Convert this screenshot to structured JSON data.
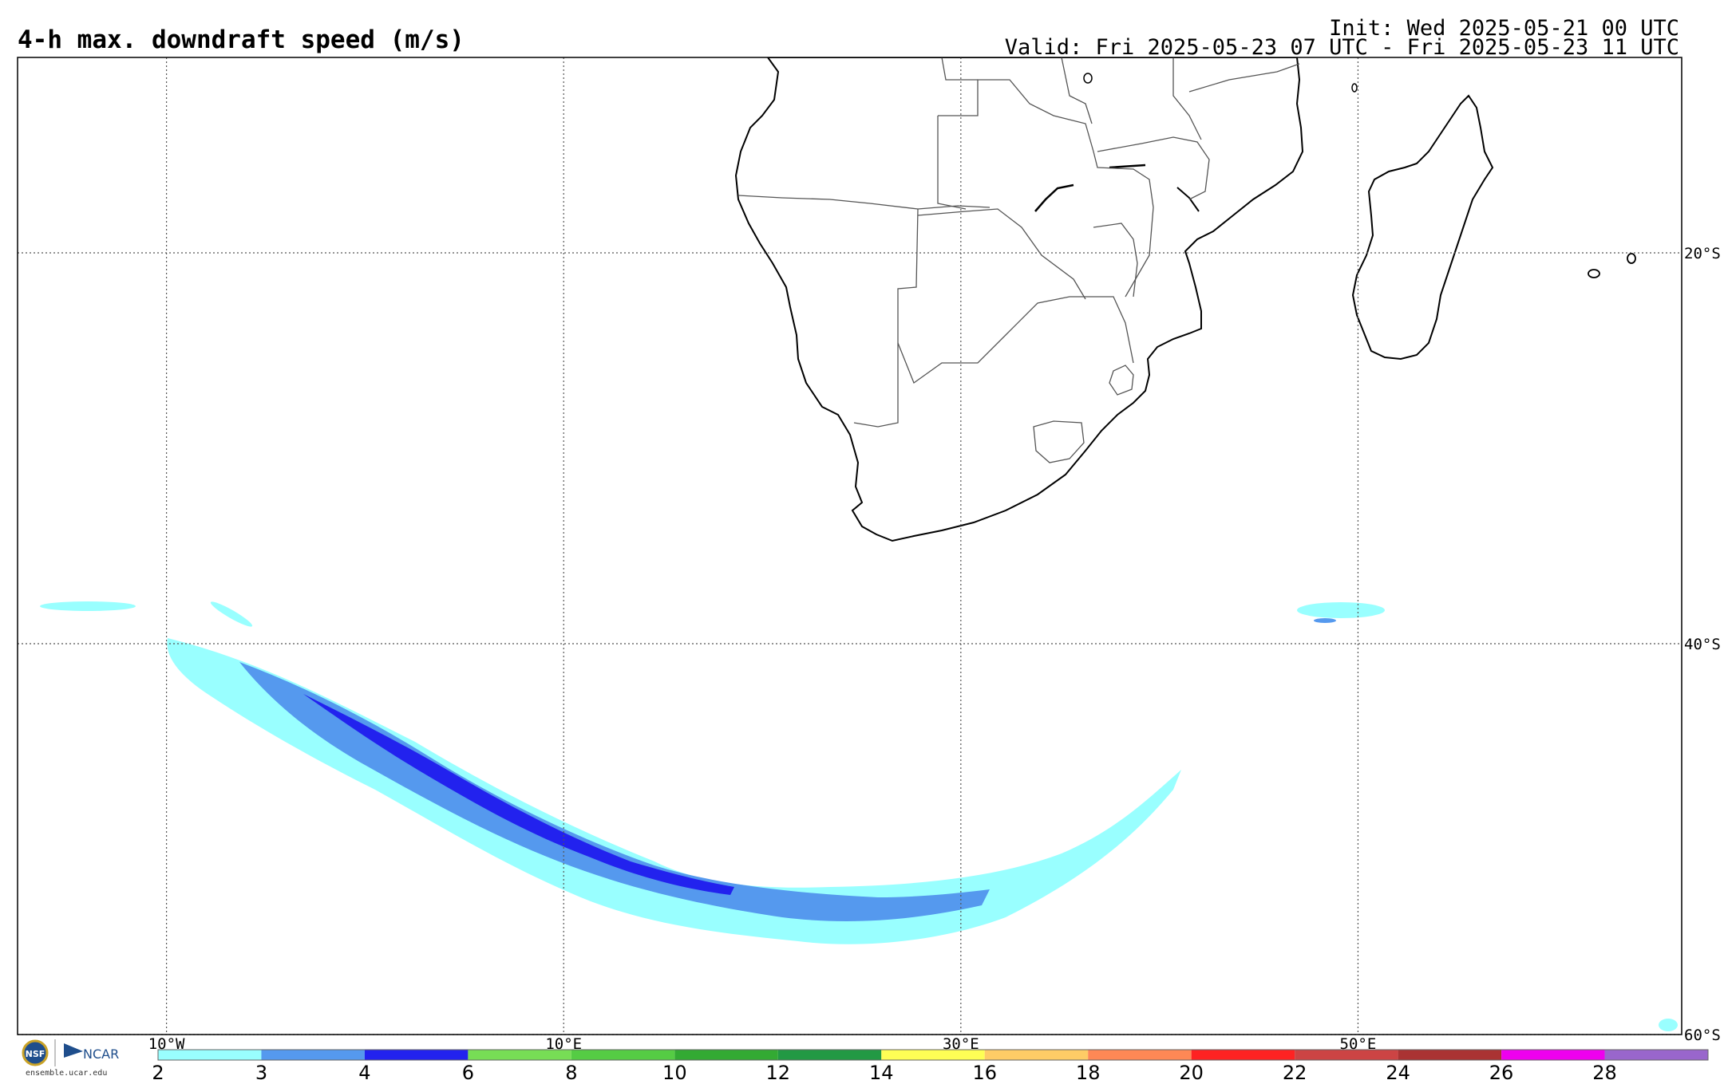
{
  "header": {
    "title": "4-h max. downdraft speed (m/s)",
    "init": "Init: Wed 2025-05-21 00 UTC",
    "valid": "Valid: Fri 2025-05-23 07 UTC - Fri 2025-05-23 11 UTC"
  },
  "map": {
    "lon_range": [
      -17.5,
      66.3
    ],
    "lat_range": [
      -60,
      -10
    ],
    "lon_labels": [
      {
        "lon": -10,
        "label": "10°W"
      },
      {
        "lon": 10,
        "label": "10°E"
      },
      {
        "lon": 30,
        "label": "30°E"
      },
      {
        "lon": 50,
        "label": "50°E"
      }
    ],
    "lat_labels": [
      {
        "lat": -20,
        "label": "20°S"
      },
      {
        "lat": -40,
        "label": "40°S"
      },
      {
        "lat": -60,
        "label": "60°S"
      }
    ],
    "grid": true,
    "land_fill": "#ffffff",
    "coast_color": "#000000",
    "border_color": "#555555"
  },
  "colorbar": {
    "ticks": [
      "2",
      "3",
      "4",
      "6",
      "8",
      "10",
      "12",
      "14",
      "16",
      "18",
      "20",
      "22",
      "24",
      "26",
      "28"
    ],
    "colors": [
      "#99ffff",
      "#5599ee",
      "#2222ee",
      "#77dd55",
      "#55cc44",
      "#33aa33",
      "#229944",
      "#ffff55",
      "#ffcc66",
      "#ff8855",
      "#ff2222",
      "#cc4444",
      "#aa3333",
      "#ee00ee",
      "#9966cc"
    ]
  },
  "logos": {
    "nsf": "NSF",
    "ncar": "NCAR",
    "credit": "ensemble.ucar.edu"
  }
}
